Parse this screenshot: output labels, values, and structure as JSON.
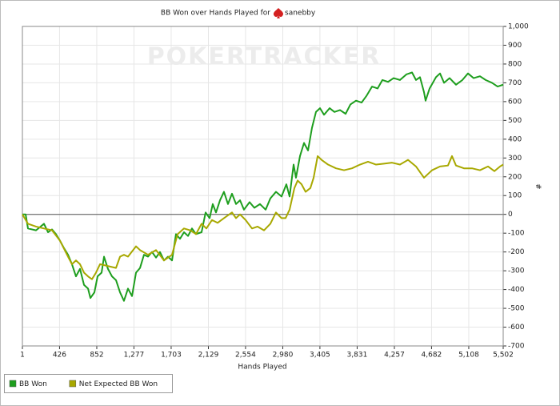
{
  "chart_data": {
    "type": "line",
    "title": "BB Won over Hands Played for",
    "player": "sanebby",
    "watermark": "POKERTRACKER",
    "x_label": "Hands Played",
    "y_label": "#",
    "xlim": [
      1,
      5502
    ],
    "ylim": [
      -700,
      1000
    ],
    "xticks": [
      1,
      426,
      852,
      {
        "value": 1277,
        "label": "1,277"
      },
      {
        "value": 1703,
        "label": "1,703"
      },
      {
        "value": 2129,
        "label": "2,129"
      },
      {
        "value": 2554,
        "label": "2,554"
      },
      {
        "value": 2980,
        "label": "2,980"
      },
      {
        "value": 3405,
        "label": "3,405"
      },
      {
        "value": 3831,
        "label": "3,831"
      },
      {
        "value": 4257,
        "label": "4,257"
      },
      {
        "value": 4682,
        "label": "4,682"
      },
      {
        "value": 5108,
        "label": "5,108"
      },
      {
        "value": 5502,
        "label": "5,502"
      }
    ],
    "yticks": [
      -700,
      -600,
      -500,
      -400,
      -300,
      -200,
      -100,
      0,
      100,
      200,
      300,
      400,
      500,
      600,
      700,
      800,
      900,
      {
        "value": 1000,
        "label": "1,000"
      }
    ],
    "grid": true,
    "legend": "bottom-left",
    "series": [
      {
        "name": "BB Won",
        "color": "#1e9e1e",
        "x": [
          1,
          38,
          65,
          157,
          248,
          294,
          340,
          385,
          431,
          477,
          523,
          568,
          614,
          660,
          706,
          752,
          779,
          825,
          861,
          907,
          935,
          980,
          1026,
          1072,
          1118,
          1163,
          1209,
          1255,
          1301,
          1347,
          1392,
          1438,
          1484,
          1530,
          1575,
          1621,
          1667,
          1713,
          1758,
          1804,
          1850,
          1896,
          1941,
          1987,
          2051,
          2097,
          2143,
          2179,
          2216,
          2262,
          2307,
          2353,
          2399,
          2445,
          2491,
          2536,
          2600,
          2655,
          2719,
          2784,
          2838,
          2902,
          2966,
          3021,
          3058,
          3104,
          3131,
          3177,
          3223,
          3269,
          3314,
          3360,
          3406,
          3452,
          3516,
          3571,
          3635,
          3699,
          3754,
          3818,
          3882,
          3937,
          4001,
          4065,
          4120,
          4184,
          4248,
          4321,
          4395,
          4459,
          4504,
          4550,
          4596,
          4614,
          4660,
          4733,
          4779,
          4825,
          4889,
          4962,
          5035,
          5099,
          5163,
          5236,
          5301,
          5374,
          5438,
          5502
        ],
        "values": [
          0,
          0,
          -75,
          -85,
          -50,
          -95,
          -80,
          -105,
          -140,
          -180,
          -215,
          -265,
          -330,
          -290,
          -375,
          -395,
          -445,
          -415,
          -330,
          -310,
          -225,
          -290,
          -330,
          -350,
          -415,
          -460,
          -395,
          -435,
          -310,
          -285,
          -215,
          -225,
          -200,
          -230,
          -200,
          -245,
          -225,
          -245,
          -105,
          -130,
          -95,
          -115,
          -75,
          -105,
          -95,
          10,
          -20,
          55,
          10,
          75,
          120,
          55,
          110,
          55,
          75,
          25,
          65,
          35,
          55,
          25,
          85,
          120,
          95,
          160,
          95,
          265,
          195,
          310,
          380,
          340,
          460,
          545,
          565,
          530,
          565,
          545,
          555,
          535,
          585,
          605,
          595,
          630,
          680,
          670,
          715,
          705,
          725,
          715,
          745,
          755,
          715,
          730,
          650,
          605,
          670,
          730,
          750,
          700,
          725,
          690,
          715,
          750,
          725,
          735,
          715,
          700,
          680,
          690
        ]
      },
      {
        "name": "Net Expected BB Won",
        "color": "#a8a800",
        "x": [
          1,
          65,
          157,
          248,
          340,
          431,
          523,
          568,
          614,
          660,
          706,
          752,
          797,
          843,
          889,
          980,
          1072,
          1118,
          1163,
          1209,
          1301,
          1347,
          1438,
          1530,
          1621,
          1713,
          1777,
          1850,
          1923,
          1987,
          2051,
          2106,
          2170,
          2234,
          2307,
          2399,
          2445,
          2491,
          2555,
          2628,
          2692,
          2765,
          2838,
          2902,
          2966,
          3012,
          3058,
          3113,
          3150,
          3195,
          3241,
          3296,
          3333,
          3379,
          3424,
          3498,
          3589,
          3681,
          3772,
          3864,
          3955,
          4047,
          4138,
          4230,
          4321,
          4413,
          4504,
          4596,
          4688,
          4779,
          4870,
          4916,
          4962,
          5053,
          5145,
          5236,
          5328,
          5401,
          5466,
          5502
        ],
        "values": [
          0,
          -50,
          -65,
          -75,
          -85,
          -140,
          -225,
          -265,
          -245,
          -265,
          -310,
          -330,
          -345,
          -310,
          -265,
          -275,
          -285,
          -225,
          -215,
          -225,
          -170,
          -190,
          -215,
          -190,
          -245,
          -215,
          -105,
          -75,
          -85,
          -105,
          -50,
          -75,
          -30,
          -45,
          -20,
          10,
          -20,
          0,
          -30,
          -75,
          -65,
          -85,
          -50,
          10,
          -20,
          -20,
          25,
          140,
          180,
          160,
          120,
          140,
          195,
          310,
          290,
          265,
          245,
          235,
          245,
          265,
          280,
          265,
          270,
          275,
          265,
          290,
          255,
          195,
          235,
          255,
          260,
          310,
          260,
          245,
          245,
          235,
          255,
          230,
          255,
          265
        ]
      }
    ]
  }
}
